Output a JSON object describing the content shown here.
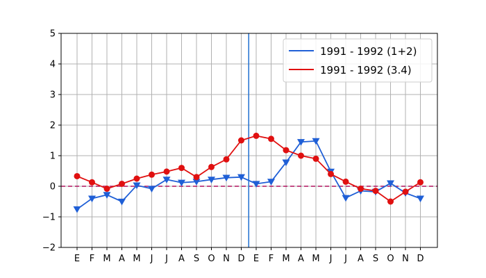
{
  "chart_data": {
    "type": "line",
    "title": "",
    "xlabel": "",
    "ylabel": "",
    "categories": [
      "E",
      "F",
      "M",
      "A",
      "M",
      "J",
      "J",
      "A",
      "S",
      "O",
      "N",
      "D",
      "E",
      "F",
      "M",
      "A",
      "M",
      "J",
      "J",
      "A",
      "S",
      "O",
      "N",
      "D"
    ],
    "ylim": [
      -2,
      5
    ],
    "yticks": [
      -2,
      -1,
      0,
      1,
      2,
      3,
      4,
      5
    ],
    "grid": true,
    "legend_position": "top-right",
    "reference_line_y": 0,
    "vertical_marker_between_categories": [
      11,
      12
    ],
    "series": [
      {
        "name": "1991 - 1992 (1+2)",
        "color": "#1f5fd6",
        "marker": "triangle-down",
        "values": [
          -0.75,
          -0.4,
          -0.28,
          -0.5,
          0.03,
          -0.08,
          0.22,
          0.12,
          0.15,
          0.22,
          0.28,
          0.3,
          0.08,
          0.15,
          0.78,
          1.45,
          1.48,
          0.48,
          -0.38,
          -0.15,
          -0.18,
          0.1,
          -0.22,
          -0.4
        ]
      },
      {
        "name": "1991 - 1992 (3.4)",
        "color": "#e01010",
        "marker": "circle",
        "values": [
          0.33,
          0.13,
          -0.08,
          0.08,
          0.25,
          0.38,
          0.48,
          0.6,
          0.3,
          0.63,
          0.88,
          1.5,
          1.65,
          1.55,
          1.18,
          1.0,
          0.9,
          0.4,
          0.15,
          -0.08,
          -0.15,
          -0.5,
          -0.18,
          0.13
        ]
      }
    ],
    "colors": {
      "zero_line": "#b0105f",
      "divider_line": "#1f6fd0",
      "grid": "#b0b0b0"
    }
  }
}
